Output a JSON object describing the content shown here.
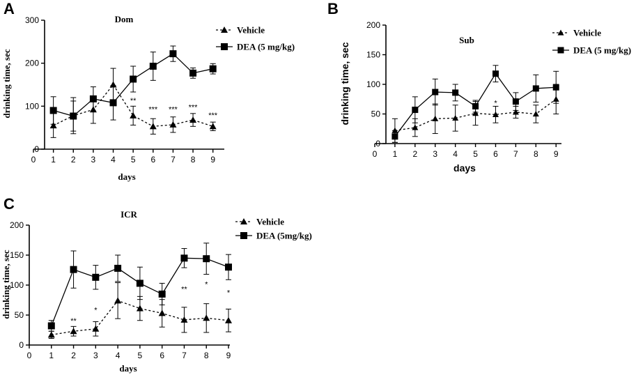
{
  "chart_data": [
    {
      "panel": "A",
      "type": "line",
      "title": "Dom",
      "xlabel": "days",
      "ylabel": "drinking time, sec",
      "xlim": [
        0,
        9.5
      ],
      "ylim": [
        0,
        300
      ],
      "x_ticks": [
        0,
        1,
        2,
        3,
        4,
        5,
        6,
        7,
        8,
        9
      ],
      "y_ticks": [
        0,
        100,
        200,
        300
      ],
      "legend_position": "top-right",
      "series": [
        {
          "name": "Vehicle",
          "marker": "triangle",
          "line_style": "dashed",
          "x": [
            1,
            2,
            3,
            4,
            5,
            6,
            7,
            8,
            9
          ],
          "values": [
            55,
            78,
            92,
            150,
            78,
            53,
            57,
            68,
            53
          ],
          "errors": [
            28,
            42,
            32,
            38,
            22,
            18,
            18,
            15,
            10
          ]
        },
        {
          "name": "DEA (5 mg/kg)",
          "marker": "square",
          "line_style": "solid",
          "x": [
            1,
            2,
            3,
            4,
            5,
            6,
            7,
            8,
            9
          ],
          "values": [
            90,
            77,
            117,
            108,
            163,
            193,
            222,
            177,
            187
          ],
          "errors": [
            32,
            35,
            28,
            40,
            30,
            33,
            18,
            12,
            12
          ]
        }
      ],
      "annotations": [
        {
          "x": 5,
          "y": 107,
          "text": "**"
        },
        {
          "x": 6,
          "y": 87,
          "text": "***"
        },
        {
          "x": 7,
          "y": 87,
          "text": "***"
        },
        {
          "x": 8,
          "y": 92,
          "text": "***"
        },
        {
          "x": 9,
          "y": 73,
          "text": "***"
        }
      ]
    },
    {
      "panel": "B",
      "type": "line",
      "title": "Sub",
      "xlabel": "days",
      "ylabel": "drinking time, sec",
      "xlim": [
        0,
        9.2
      ],
      "ylim": [
        0,
        200
      ],
      "x_ticks": [
        0,
        1,
        2,
        3,
        4,
        5,
        6,
        7,
        8,
        9
      ],
      "y_ticks": [
        0,
        50,
        100,
        150,
        200
      ],
      "legend_position": "top-right",
      "series": [
        {
          "name": "Vehicle",
          "marker": "triangle",
          "line_style": "dashed",
          "x": [
            1,
            2,
            3,
            4,
            5,
            6,
            7,
            8,
            9
          ],
          "values": [
            22,
            27,
            42,
            43,
            51,
            49,
            53,
            50,
            75
          ],
          "errors": [
            20,
            15,
            25,
            22,
            20,
            14,
            10,
            15,
            25
          ]
        },
        {
          "name": "DEA (5 mg/kg)",
          "marker": "square",
          "line_style": "solid",
          "x": [
            1,
            2,
            3,
            4,
            5,
            6,
            7,
            8,
            9
          ],
          "values": [
            12,
            57,
            87,
            86,
            63,
            118,
            71,
            93,
            95
          ],
          "errors": [
            10,
            22,
            22,
            14,
            10,
            14,
            15,
            23,
            27
          ]
        }
      ],
      "annotations": [
        {
          "x": 6,
          "y": 64,
          "text": "*"
        }
      ]
    },
    {
      "panel": "C",
      "type": "line",
      "title": "ICR",
      "xlabel": "days",
      "ylabel": "drinking time, sec",
      "xlim": [
        0,
        9
      ],
      "ylim": [
        0,
        200
      ],
      "x_ticks": [
        0,
        1,
        2,
        3,
        4,
        5,
        6,
        7,
        8,
        9
      ],
      "y_ticks": [
        0,
        50,
        100,
        150,
        200
      ],
      "legend_position": "top-right",
      "series": [
        {
          "name": "Vehicle",
          "marker": "triangle",
          "line_style": "dashed",
          "x": [
            1,
            2,
            3,
            4,
            5,
            6,
            7,
            8,
            9
          ],
          "values": [
            17,
            23,
            27,
            74,
            61,
            53,
            42,
            45,
            41
          ],
          "errors": [
            6,
            8,
            12,
            30,
            20,
            23,
            21,
            24,
            19
          ]
        },
        {
          "name": "DEA (5mg/kg)",
          "marker": "square",
          "line_style": "solid",
          "x": [
            1,
            2,
            3,
            4,
            5,
            6,
            7,
            8,
            9
          ],
          "values": [
            32,
            126,
            113,
            128,
            103,
            85,
            145,
            144,
            130
          ],
          "errors": [
            9,
            31,
            20,
            22,
            27,
            18,
            16,
            26,
            21
          ]
        }
      ],
      "annotations": [
        {
          "x": 2,
          "y": 36,
          "text": "**"
        },
        {
          "x": 3,
          "y": 54,
          "text": "*"
        },
        {
          "x": 7,
          "y": 89,
          "text": "**"
        },
        {
          "x": 8,
          "y": 97,
          "text": "*"
        },
        {
          "x": 9,
          "y": 83,
          "text": "*"
        }
      ]
    }
  ]
}
